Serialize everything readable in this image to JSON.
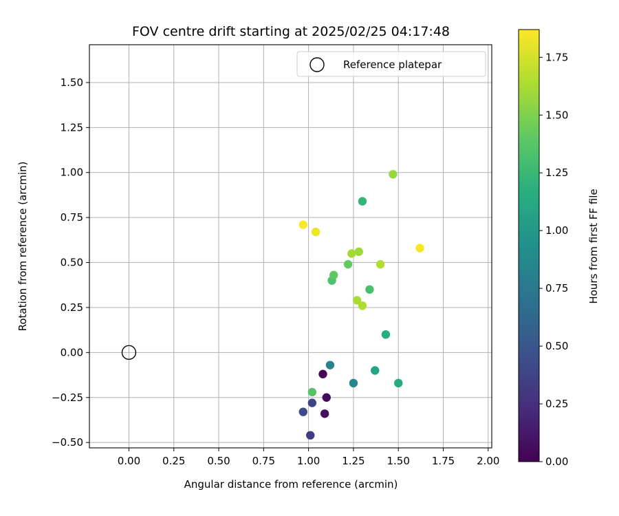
{
  "chart_data": {
    "type": "scatter",
    "title": "FOV centre drift starting at 2025/02/25 04:17:48",
    "xlabel": "Angular distance from reference (arcmin)",
    "ylabel": "Rotation from reference (arcmin)",
    "xlim": [
      -0.22,
      2.02
    ],
    "ylim": [
      -0.53,
      1.71
    ],
    "xticks": [
      0.0,
      0.25,
      0.5,
      0.75,
      1.0,
      1.25,
      1.5,
      1.75,
      2.0
    ],
    "xtick_labels": [
      "0.00",
      "0.25",
      "0.50",
      "0.75",
      "1.00",
      "1.25",
      "1.50",
      "1.75",
      "2.00"
    ],
    "yticks": [
      -0.5,
      -0.25,
      0.0,
      0.25,
      0.5,
      0.75,
      1.0,
      1.25,
      1.5
    ],
    "ytick_labels": [
      "−0.50",
      "−0.25",
      "0.00",
      "0.25",
      "0.50",
      "0.75",
      "1.00",
      "1.25",
      "1.50"
    ],
    "grid": true,
    "legend": {
      "placement": "top-right",
      "entries": [
        "Reference platepar"
      ]
    },
    "reference_point": {
      "x": 0.0,
      "y": 0.0
    },
    "colorbar": {
      "label": "Hours from first FF file",
      "colormap": "viridis",
      "range": [
        0.0,
        1.87
      ],
      "ticks": [
        0.0,
        0.25,
        0.5,
        0.75,
        1.0,
        1.25,
        1.5,
        1.75
      ],
      "tick_labels": [
        "0.00",
        "0.25",
        "0.50",
        "0.75",
        "1.00",
        "1.25",
        "1.50",
        "1.75"
      ]
    },
    "points": [
      {
        "x": 1.08,
        "y": -0.12,
        "hours": 0.02
      },
      {
        "x": 1.1,
        "y": -0.25,
        "hours": 0.04
      },
      {
        "x": 1.09,
        "y": -0.34,
        "hours": 0.07
      },
      {
        "x": 1.01,
        "y": -0.46,
        "hours": 0.33
      },
      {
        "x": 1.02,
        "y": -0.28,
        "hours": 0.38
      },
      {
        "x": 0.97,
        "y": -0.33,
        "hours": 0.43
      },
      {
        "x": 1.12,
        "y": -0.07,
        "hours": 0.82
      },
      {
        "x": 1.25,
        "y": -0.17,
        "hours": 0.86
      },
      {
        "x": 1.37,
        "y": -0.1,
        "hours": 1.08
      },
      {
        "x": 1.5,
        "y": -0.17,
        "hours": 1.13
      },
      {
        "x": 1.43,
        "y": 0.1,
        "hours": 1.16
      },
      {
        "x": 1.3,
        "y": 0.84,
        "hours": 1.22
      },
      {
        "x": 1.34,
        "y": 0.35,
        "hours": 1.31
      },
      {
        "x": 1.13,
        "y": 0.4,
        "hours": 1.33
      },
      {
        "x": 1.02,
        "y": -0.22,
        "hours": 1.36
      },
      {
        "x": 1.14,
        "y": 0.43,
        "hours": 1.4
      },
      {
        "x": 1.22,
        "y": 0.49,
        "hours": 1.42
      },
      {
        "x": 1.47,
        "y": 0.99,
        "hours": 1.57
      },
      {
        "x": 1.28,
        "y": 0.56,
        "hours": 1.59
      },
      {
        "x": 1.24,
        "y": 0.55,
        "hours": 1.61
      },
      {
        "x": 1.27,
        "y": 0.29,
        "hours": 1.62
      },
      {
        "x": 1.3,
        "y": 0.26,
        "hours": 1.64
      },
      {
        "x": 1.4,
        "y": 0.49,
        "hours": 1.66
      },
      {
        "x": 1.04,
        "y": 0.67,
        "hours": 1.83
      },
      {
        "x": 1.62,
        "y": 0.58,
        "hours": 1.85
      },
      {
        "x": 0.97,
        "y": 0.71,
        "hours": 1.86
      }
    ]
  }
}
